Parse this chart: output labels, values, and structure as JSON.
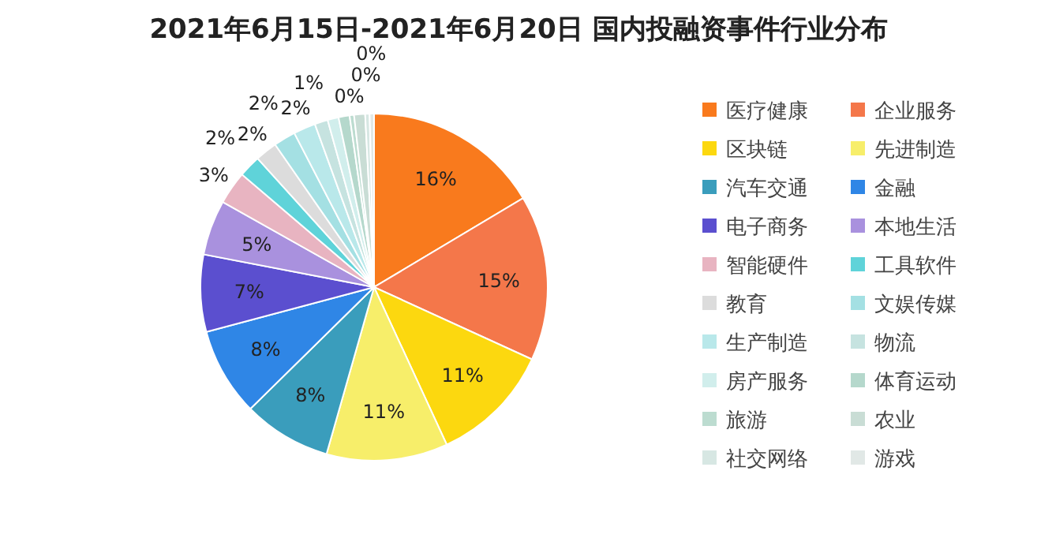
{
  "chart_data": {
    "type": "pie",
    "title": "2021年6月15日-2021年6月20日 国内投融资事件行业分布",
    "categories": [
      "医疗健康",
      "企业服务",
      "区块链",
      "先进制造",
      "汽车交通",
      "金融",
      "电子商务",
      "本地生活",
      "智能硬件",
      "工具软件",
      "教育",
      "文娱传媒",
      "生产制造",
      "物流",
      "房产服务",
      "体育运动",
      "旅游",
      "农业",
      "社交网络",
      "游戏"
    ],
    "values": [
      16,
      15,
      11,
      11,
      8,
      8,
      7,
      5,
      3,
      2,
      2,
      2,
      2,
      1.2,
      1,
      1,
      0.4,
      1,
      0.4,
      0.4
    ],
    "value_labels": [
      "16%",
      "15%",
      "11%",
      "11%",
      "8%",
      "8%",
      "7%",
      "5%",
      "3%",
      "2%",
      "2%",
      "2%",
      "2%",
      "1%",
      null,
      null,
      "0%",
      null,
      "0%",
      "0%"
    ],
    "colors": [
      "#f97a1d",
      "#f4774a",
      "#fcd80f",
      "#f7ee6a",
      "#3a9dbc",
      "#2f86e6",
      "#5b4fcf",
      "#a991de",
      "#e8b4c1",
      "#5fd3d9",
      "#dcdcdc",
      "#a4e0e3",
      "#b9e8ea",
      "#c6e3e0",
      "#d1eeec",
      "#b5d8cc",
      "#bcdcd0",
      "#c9ddd5",
      "#d7e7e3",
      "#e1e8e6"
    ],
    "legend": "right"
  }
}
